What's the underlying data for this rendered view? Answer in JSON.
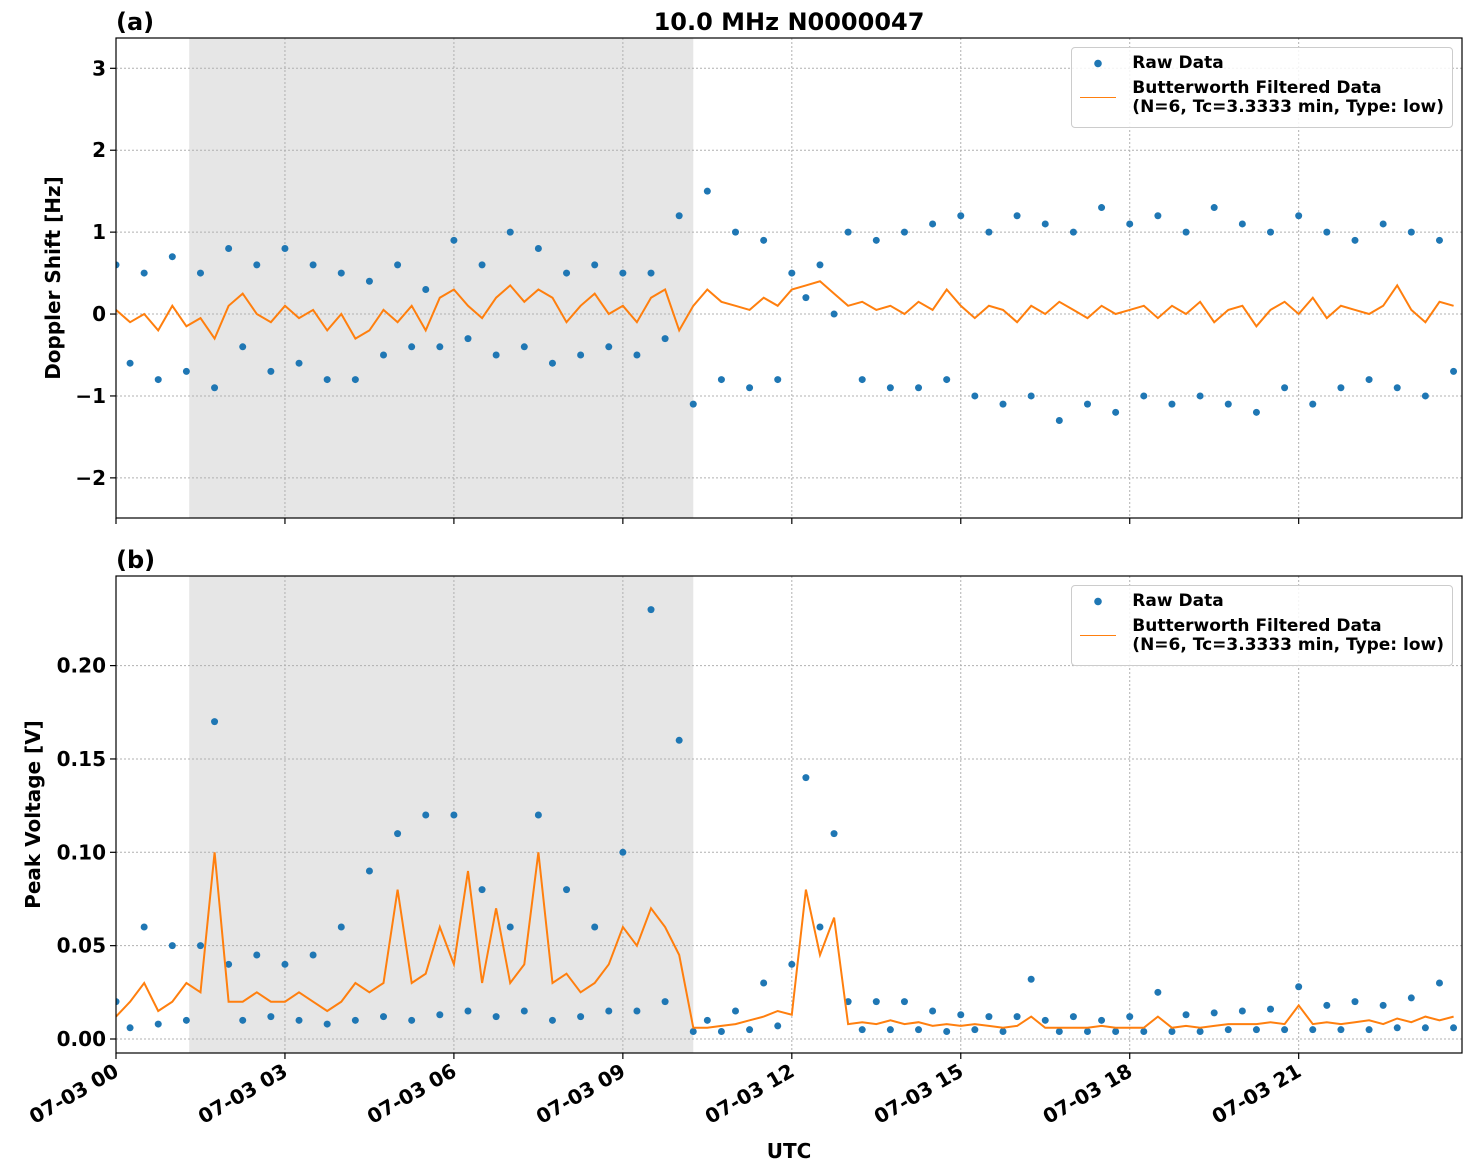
{
  "chart_data": [
    {
      "type": "scatter-line",
      "title": "10.0 MHz N0000047",
      "panel_label": "(a)",
      "ylabel": "Doppler Shift [Hz]",
      "xlim": [
        0,
        23.9
      ],
      "xticks": [
        0,
        3,
        6,
        9,
        12,
        15,
        18,
        21
      ],
      "ylim": [
        -2.49,
        3.37
      ],
      "yticks": [
        {
          "value": -2,
          "label": "−2"
        },
        {
          "value": -1,
          "label": "−1"
        },
        0,
        1,
        2,
        3
      ],
      "grid": true,
      "legend": "upper right",
      "shaded_span": [
        1.3,
        10.25
      ],
      "x": [
        0,
        0.25,
        0.5,
        0.75,
        1,
        1.25,
        1.5,
        1.75,
        2,
        2.25,
        2.5,
        2.75,
        3,
        3.25,
        3.5,
        3.75,
        4,
        4.25,
        4.5,
        4.75,
        5,
        5.25,
        5.5,
        5.75,
        6,
        6.25,
        6.5,
        6.75,
        7,
        7.25,
        7.5,
        7.75,
        8,
        8.25,
        8.5,
        8.75,
        9,
        9.25,
        9.5,
        9.75,
        10,
        10.25,
        10.5,
        10.75,
        11,
        11.25,
        11.5,
        11.75,
        12,
        12.25,
        12.5,
        12.75,
        13,
        13.25,
        13.5,
        13.75,
        14,
        14.25,
        14.5,
        14.75,
        15,
        15.25,
        15.5,
        15.75,
        16,
        16.25,
        16.5,
        16.75,
        17,
        17.25,
        17.5,
        17.75,
        18,
        18.25,
        18.5,
        18.75,
        19,
        19.25,
        19.5,
        19.75,
        20,
        20.25,
        20.5,
        20.75,
        21,
        21.25,
        21.5,
        21.75,
        22,
        22.25,
        22.5,
        22.75,
        23,
        23.25,
        23.5,
        23.75
      ],
      "series": [
        {
          "name": "Raw Data",
          "color": "#1f77b4",
          "kind": "points",
          "values": [
            0.6,
            -0.6,
            0.5,
            -0.8,
            0.7,
            -0.7,
            0.5,
            -0.9,
            0.8,
            -0.4,
            0.6,
            -0.7,
            0.8,
            -0.6,
            0.6,
            -0.8,
            0.5,
            -0.8,
            0.4,
            -0.5,
            0.6,
            -0.4,
            0.3,
            -0.4,
            0.9,
            -0.3,
            0.6,
            -0.5,
            1.0,
            -0.4,
            0.8,
            -0.6,
            0.5,
            -0.5,
            0.6,
            -0.4,
            0.5,
            -0.5,
            0.5,
            -0.3,
            1.2,
            -1.1,
            1.5,
            -0.8,
            1.0,
            -0.9,
            0.9,
            -0.8,
            0.5,
            0.2,
            0.6,
            0.0,
            1.0,
            -0.8,
            0.9,
            -0.9,
            1.0,
            -0.9,
            1.1,
            -0.8,
            1.2,
            -1.0,
            1.0,
            -1.1,
            1.2,
            -1.0,
            1.1,
            -1.3,
            1.0,
            -1.1,
            1.3,
            -1.2,
            1.1,
            -1.0,
            1.2,
            -1.1,
            1.0,
            -1.0,
            1.3,
            -1.1,
            1.1,
            -1.2,
            1.0,
            -0.9,
            1.2,
            -1.1,
            1.0,
            -0.9,
            0.9,
            -0.8,
            1.1,
            -0.9,
            1.0,
            -1.0,
            0.9,
            -0.7
          ]
        },
        {
          "name": "Butterworth Filtered Data\n(N=6, Tc=3.3333 min, Type: low)",
          "color": "#ff7f0e",
          "kind": "line",
          "values": [
            0.05,
            -0.1,
            0.0,
            -0.2,
            0.1,
            -0.15,
            -0.05,
            -0.3,
            0.1,
            0.25,
            0.0,
            -0.1,
            0.1,
            -0.05,
            0.05,
            -0.2,
            0.0,
            -0.3,
            -0.2,
            0.05,
            -0.1,
            0.1,
            -0.2,
            0.2,
            0.3,
            0.1,
            -0.05,
            0.2,
            0.35,
            0.15,
            0.3,
            0.2,
            -0.1,
            0.1,
            0.25,
            0.0,
            0.1,
            -0.1,
            0.2,
            0.3,
            -0.2,
            0.1,
            0.3,
            0.15,
            0.1,
            0.05,
            0.2,
            0.1,
            0.3,
            0.35,
            0.4,
            0.25,
            0.1,
            0.15,
            0.05,
            0.1,
            0.0,
            0.15,
            0.05,
            0.3,
            0.1,
            -0.05,
            0.1,
            0.05,
            -0.1,
            0.1,
            0.0,
            0.15,
            0.05,
            -0.05,
            0.1,
            0.0,
            0.05,
            0.1,
            -0.05,
            0.1,
            0.0,
            0.15,
            -0.1,
            0.05,
            0.1,
            -0.15,
            0.05,
            0.15,
            0.0,
            0.2,
            -0.05,
            0.1,
            0.05,
            0.0,
            0.1,
            0.35,
            0.05,
            -0.1,
            0.15,
            0.1
          ]
        }
      ]
    },
    {
      "type": "scatter-line",
      "panel_label": "(b)",
      "ylabel": "Peak Voltage [V]",
      "xlabel": "UTC",
      "xlim": [
        0,
        23.9
      ],
      "xticks": [
        {
          "value": 0,
          "label": "07-03 00"
        },
        {
          "value": 3,
          "label": "07-03 03"
        },
        {
          "value": 6,
          "label": "07-03 06"
        },
        {
          "value": 9,
          "label": "07-03 09"
        },
        {
          "value": 12,
          "label": "07-03 12"
        },
        {
          "value": 15,
          "label": "07-03 15"
        },
        {
          "value": 18,
          "label": "07-03 18"
        },
        {
          "value": 21,
          "label": "07-03 21"
        }
      ],
      "ylim": [
        -0.0075,
        0.248
      ],
      "yticks": [
        {
          "value": 0,
          "label": "0.00"
        },
        {
          "value": 0.05,
          "label": "0.05"
        },
        {
          "value": 0.1,
          "label": "0.10"
        },
        {
          "value": 0.15,
          "label": "0.15"
        },
        {
          "value": 0.2,
          "label": "0.20"
        }
      ],
      "grid": true,
      "legend": "upper right",
      "shaded_span": [
        1.3,
        10.25
      ],
      "x": [
        0,
        0.25,
        0.5,
        0.75,
        1,
        1.25,
        1.5,
        1.75,
        2,
        2.25,
        2.5,
        2.75,
        3,
        3.25,
        3.5,
        3.75,
        4,
        4.25,
        4.5,
        4.75,
        5,
        5.25,
        5.5,
        5.75,
        6,
        6.25,
        6.5,
        6.75,
        7,
        7.25,
        7.5,
        7.75,
        8,
        8.25,
        8.5,
        8.75,
        9,
        9.25,
        9.5,
        9.75,
        10,
        10.25,
        10.5,
        10.75,
        11,
        11.25,
        11.5,
        11.75,
        12,
        12.25,
        12.5,
        12.75,
        13,
        13.25,
        13.5,
        13.75,
        14,
        14.25,
        14.5,
        14.75,
        15,
        15.25,
        15.5,
        15.75,
        16,
        16.25,
        16.5,
        16.75,
        17,
        17.25,
        17.5,
        17.75,
        18,
        18.25,
        18.5,
        18.75,
        19,
        19.25,
        19.5,
        19.75,
        20,
        20.25,
        20.5,
        20.75,
        21,
        21.25,
        21.5,
        21.75,
        22,
        22.25,
        22.5,
        22.75,
        23,
        23.25,
        23.5,
        23.75
      ],
      "series": [
        {
          "name": "Raw Data",
          "color": "#1f77b4",
          "kind": "points",
          "values": [
            0.02,
            0.006,
            0.06,
            0.008,
            0.05,
            0.01,
            0.05,
            0.17,
            0.04,
            0.01,
            0.045,
            0.012,
            0.04,
            0.01,
            0.045,
            0.008,
            0.06,
            0.01,
            0.09,
            0.012,
            0.11,
            0.01,
            0.12,
            0.013,
            0.12,
            0.015,
            0.08,
            0.012,
            0.06,
            0.015,
            0.12,
            0.01,
            0.08,
            0.012,
            0.06,
            0.015,
            0.1,
            0.015,
            0.23,
            0.02,
            0.16,
            0.004,
            0.01,
            0.004,
            0.015,
            0.005,
            0.03,
            0.007,
            0.04,
            0.14,
            0.06,
            0.11,
            0.02,
            0.005,
            0.02,
            0.005,
            0.02,
            0.005,
            0.015,
            0.004,
            0.013,
            0.005,
            0.012,
            0.004,
            0.012,
            0.032,
            0.01,
            0.004,
            0.012,
            0.004,
            0.01,
            0.004,
            0.012,
            0.004,
            0.025,
            0.004,
            0.013,
            0.004,
            0.014,
            0.005,
            0.015,
            0.005,
            0.016,
            0.005,
            0.028,
            0.005,
            0.018,
            0.005,
            0.02,
            0.005,
            0.018,
            0.006,
            0.022,
            0.006,
            0.03,
            0.006
          ]
        },
        {
          "name": "Butterworth Filtered Data\n(N=6, Tc=3.3333 min, Type: low)",
          "color": "#ff7f0e",
          "kind": "line",
          "values": [
            0.012,
            0.02,
            0.03,
            0.015,
            0.02,
            0.03,
            0.025,
            0.1,
            0.02,
            0.02,
            0.025,
            0.02,
            0.02,
            0.025,
            0.02,
            0.015,
            0.02,
            0.03,
            0.025,
            0.03,
            0.08,
            0.03,
            0.035,
            0.06,
            0.04,
            0.09,
            0.03,
            0.07,
            0.03,
            0.04,
            0.1,
            0.03,
            0.035,
            0.025,
            0.03,
            0.04,
            0.06,
            0.05,
            0.07,
            0.06,
            0.045,
            0.006,
            0.006,
            0.007,
            0.008,
            0.01,
            0.012,
            0.015,
            0.013,
            0.08,
            0.045,
            0.065,
            0.008,
            0.009,
            0.008,
            0.01,
            0.008,
            0.009,
            0.007,
            0.008,
            0.007,
            0.008,
            0.007,
            0.006,
            0.007,
            0.012,
            0.006,
            0.006,
            0.006,
            0.006,
            0.007,
            0.006,
            0.006,
            0.006,
            0.012,
            0.006,
            0.007,
            0.006,
            0.007,
            0.008,
            0.008,
            0.008,
            0.009,
            0.008,
            0.018,
            0.008,
            0.009,
            0.008,
            0.009,
            0.01,
            0.008,
            0.011,
            0.009,
            0.012,
            0.01,
            0.012
          ]
        }
      ]
    }
  ]
}
